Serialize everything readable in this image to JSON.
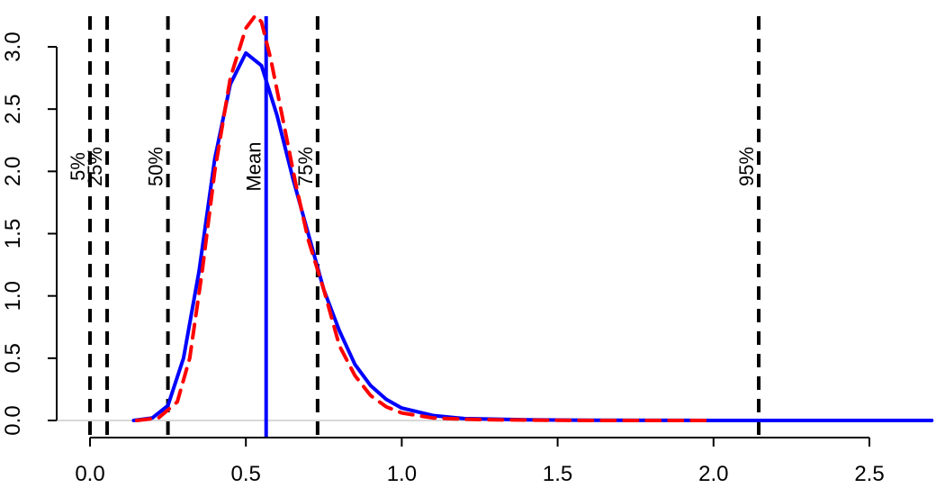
{
  "chart_data": {
    "type": "line",
    "title": "",
    "xlabel": "",
    "ylabel": "",
    "xlim": [
      -0.2,
      2.7
    ],
    "ylim": [
      0,
      3.3
    ],
    "grid": false,
    "x_ticks": [
      {
        "value": 0.0,
        "label": "0.0"
      },
      {
        "value": 0.5,
        "label": "0.5"
      },
      {
        "value": 1.0,
        "label": "1.0"
      },
      {
        "value": 1.5,
        "label": "1.5"
      },
      {
        "value": 2.0,
        "label": "2.0"
      },
      {
        "value": 2.5,
        "label": "2.5"
      }
    ],
    "y_ticks": [
      {
        "value": 0.0,
        "label": "0.0"
      },
      {
        "value": 0.5,
        "label": "0.5"
      },
      {
        "value": 1.0,
        "label": "1.0"
      },
      {
        "value": 1.5,
        "label": "1.5"
      },
      {
        "value": 2.0,
        "label": "2.0"
      },
      {
        "value": 2.5,
        "label": "2.5"
      },
      {
        "value": 3.0,
        "label": "3.0"
      }
    ],
    "series": [
      {
        "style": "solid",
        "color": "#0000ff",
        "x": [
          0.14,
          0.2,
          0.25,
          0.3,
          0.35,
          0.4,
          0.45,
          0.5,
          0.55,
          0.6,
          0.65,
          0.7,
          0.75,
          0.8,
          0.85,
          0.9,
          0.95,
          1.0,
          1.1,
          1.2,
          1.4,
          1.6,
          2.0,
          2.4,
          2.7
        ],
        "y": [
          0.0,
          0.02,
          0.12,
          0.5,
          1.2,
          2.1,
          2.7,
          2.95,
          2.85,
          2.45,
          1.95,
          1.5,
          1.05,
          0.72,
          0.45,
          0.28,
          0.17,
          0.1,
          0.04,
          0.015,
          0.005,
          0.002,
          0.0,
          0.0,
          0.0
        ]
      },
      {
        "style": "dashed",
        "color": "#ff0000",
        "x": [
          0.15,
          0.22,
          0.28,
          0.32,
          0.36,
          0.4,
          0.45,
          0.5,
          0.53,
          0.55,
          0.58,
          0.62,
          0.66,
          0.7,
          0.75,
          0.8,
          0.85,
          0.9,
          0.95,
          1.0,
          1.1,
          1.2,
          1.3,
          1.6,
          2.0
        ],
        "y": [
          0.0,
          0.02,
          0.15,
          0.5,
          1.2,
          2.0,
          2.75,
          3.15,
          3.25,
          3.2,
          2.9,
          2.4,
          1.9,
          1.45,
          1.05,
          0.6,
          0.36,
          0.2,
          0.11,
          0.06,
          0.02,
          0.01,
          0.005,
          0.0,
          0.0
        ]
      }
    ],
    "vlines": [
      {
        "x": 0.0,
        "label": "5%",
        "style": "dashed",
        "color": "#000000"
      },
      {
        "x": 0.055,
        "label": "25%",
        "style": "dashed",
        "color": "#000000"
      },
      {
        "x": 0.25,
        "label": "50%",
        "style": "dashed",
        "color": "#000000"
      },
      {
        "x": 0.565,
        "label": "Mean",
        "style": "solid",
        "color": "#0000ff"
      },
      {
        "x": 0.73,
        "label": "75%",
        "style": "dashed",
        "color": "#000000"
      },
      {
        "x": 2.145,
        "label": "95%",
        "style": "dashed",
        "color": "#000000"
      }
    ],
    "hline": {
      "y": 0,
      "color": "#cccccc"
    }
  }
}
